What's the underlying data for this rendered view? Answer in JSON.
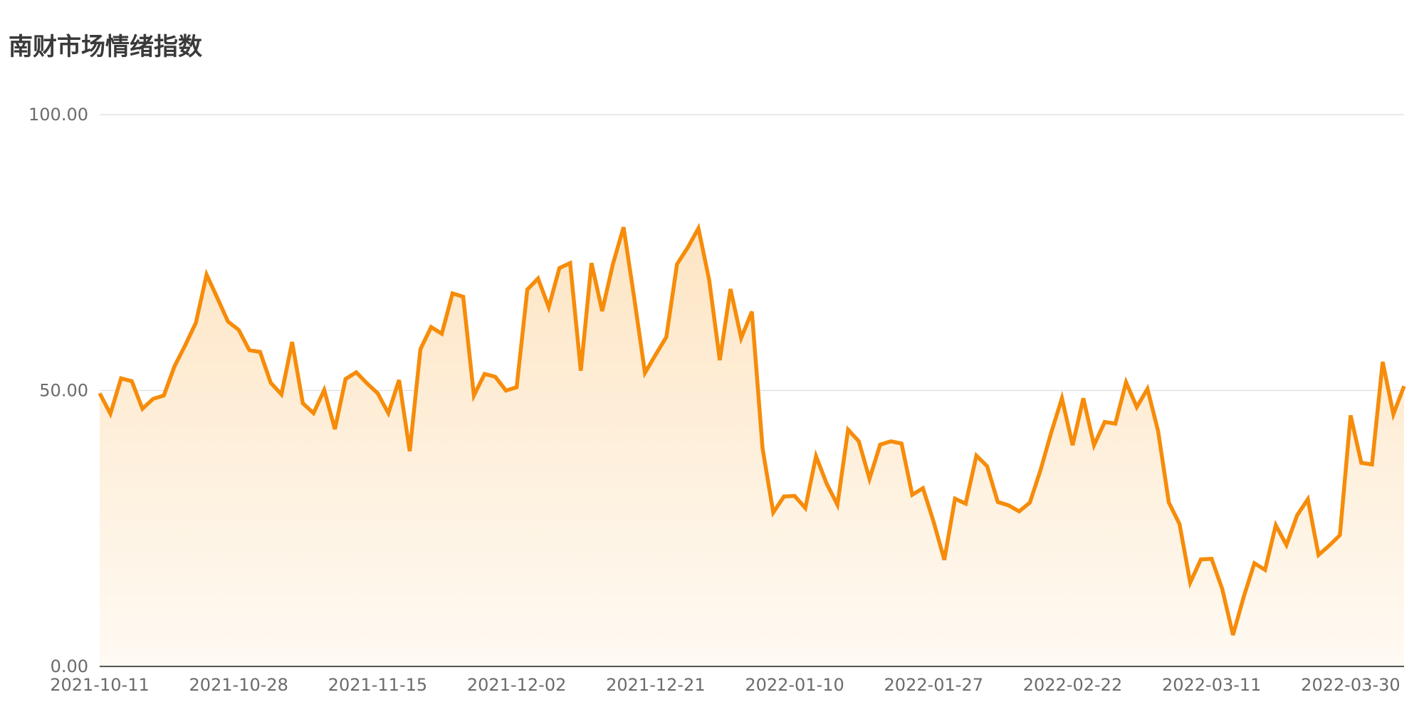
{
  "chart": {
    "title": "南财市场情绪指数"
  },
  "chart_data": {
    "type": "area",
    "title": "南财市场情绪指数",
    "xlabel": "",
    "ylabel": "",
    "ylim": [
      0,
      100
    ],
    "y_ticks": [
      "0.00",
      "50.00",
      "100.00"
    ],
    "x_tick_labels": [
      "2021-10-11",
      "2021-10-28",
      "2021-11-15",
      "2021-12-02",
      "2021-12-21",
      "2022-01-10",
      "2022-01-27",
      "2022-02-22",
      "2022-03-11",
      "2022-03-30"
    ],
    "x_tick_indices": [
      0,
      13,
      26,
      39,
      52,
      65,
      78,
      91,
      104,
      117
    ],
    "grid": true,
    "line_color": "#f68c0a",
    "series": [
      {
        "values": [
          49.5,
          45.8,
          52.2,
          51.7,
          46.7,
          48.5,
          49.1,
          54.4,
          58.2,
          62.3,
          71.0,
          66.8,
          62.5,
          61.0,
          57.3,
          57.0,
          51.4,
          49.3,
          58.8,
          47.7,
          45.9,
          50.1,
          43.0,
          52.1,
          53.3,
          51.3,
          49.5,
          45.9,
          51.9,
          39.0,
          57.5,
          61.5,
          60.3,
          67.6,
          67.0,
          49.1,
          53.0,
          52.5,
          50.0,
          50.6,
          68.3,
          70.3,
          65.1,
          72.2,
          73.1,
          53.6,
          73.1,
          64.4,
          72.9,
          79.6,
          66.7,
          53.2,
          56.5,
          59.7,
          72.9,
          75.9,
          79.4,
          70.1,
          55.5,
          68.4,
          59.5,
          64.3,
          39.5,
          27.9,
          30.8,
          30.9,
          28.7,
          38.1,
          33.1,
          29.3,
          42.9,
          40.8,
          34.0,
          40.2,
          40.8,
          40.4,
          31.1,
          32.3,
          26.2,
          19.3,
          30.4,
          29.5,
          38.2,
          36.3,
          29.8,
          29.2,
          28.1,
          29.7,
          35.6,
          42.4,
          48.6,
          40.1,
          48.6,
          40.1,
          44.3,
          44.0,
          51.5,
          47.0,
          50.3,
          42.6,
          29.7,
          25.8,
          15.2,
          19.4,
          19.5,
          14.0,
          5.7,
          12.6,
          18.7,
          17.5,
          25.6,
          22.0,
          27.4,
          30.3,
          20.2,
          21.9,
          23.8,
          45.5,
          36.9,
          36.6,
          55.2,
          45.7,
          50.8
        ]
      }
    ]
  }
}
